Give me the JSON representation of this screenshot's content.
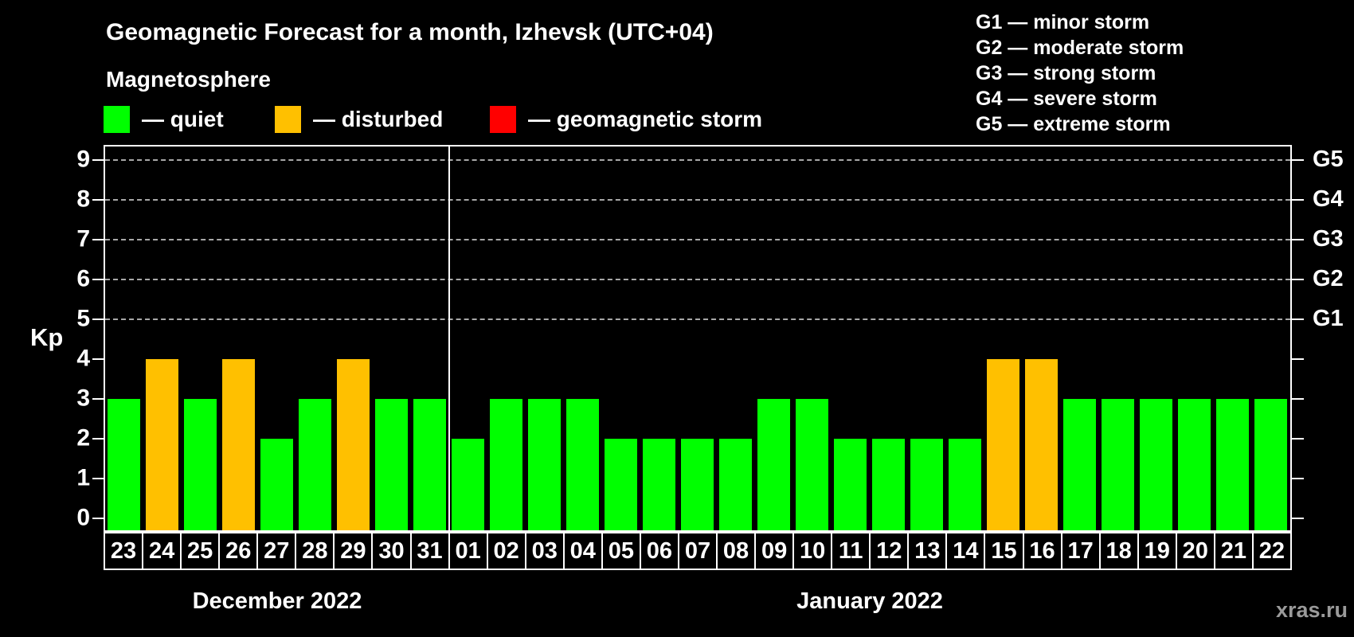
{
  "page": {
    "watermark": "xras.ru"
  },
  "colors": {
    "background": "#000000",
    "quiet": "#00ff00",
    "disturbed": "#ffc000",
    "storm": "#ff0000",
    "grid": "#a8a8a8",
    "axis": "#ffffff",
    "watermark": "#9a9a9a"
  },
  "legend": {
    "items": [
      {
        "key": "quiet",
        "label": "— quiet"
      },
      {
        "key": "disturbed",
        "label": "— disturbed"
      },
      {
        "key": "storm",
        "label": "— geomagnetic storm"
      }
    ],
    "positions_x": [
      130,
      345,
      615
    ]
  },
  "storm_scale_legend": [
    "G1 — minor storm",
    "G2 — moderate storm",
    "G3 — strong storm",
    "G4 — severe storm",
    "G5 — extreme storm"
  ],
  "chart_data": {
    "type": "bar",
    "title": "Geomagnetic Forecast for a month, Izhevsk (UTC+04)",
    "subtitle": "Magnetosphere",
    "ylabel": "Kp",
    "xlabel": "",
    "ylim": [
      0,
      9
    ],
    "yticks": [
      0,
      1,
      2,
      3,
      4,
      5,
      6,
      7,
      8,
      9
    ],
    "gridlines_at": [
      5,
      6,
      7,
      8,
      9
    ],
    "grid": "dashed",
    "right_axis": [
      {
        "value": 5,
        "label": "G1"
      },
      {
        "value": 6,
        "label": "G2"
      },
      {
        "value": 7,
        "label": "G3"
      },
      {
        "value": 8,
        "label": "G4"
      },
      {
        "value": 9,
        "label": "G5"
      }
    ],
    "months": [
      {
        "label": "December 2022",
        "days": [
          {
            "date": "23",
            "kp": 3,
            "status": "quiet"
          },
          {
            "date": "24",
            "kp": 4,
            "status": "disturbed"
          },
          {
            "date": "25",
            "kp": 3,
            "status": "quiet"
          },
          {
            "date": "26",
            "kp": 4,
            "status": "disturbed"
          },
          {
            "date": "27",
            "kp": 2,
            "status": "quiet"
          },
          {
            "date": "28",
            "kp": 3,
            "status": "quiet"
          },
          {
            "date": "29",
            "kp": 4,
            "status": "disturbed"
          },
          {
            "date": "30",
            "kp": 3,
            "status": "quiet"
          },
          {
            "date": "31",
            "kp": 3,
            "status": "quiet"
          }
        ]
      },
      {
        "label": "January 2022",
        "days": [
          {
            "date": "01",
            "kp": 2,
            "status": "quiet"
          },
          {
            "date": "02",
            "kp": 3,
            "status": "quiet"
          },
          {
            "date": "03",
            "kp": 3,
            "status": "quiet"
          },
          {
            "date": "04",
            "kp": 3,
            "status": "quiet"
          },
          {
            "date": "05",
            "kp": 2,
            "status": "quiet"
          },
          {
            "date": "06",
            "kp": 2,
            "status": "quiet"
          },
          {
            "date": "07",
            "kp": 2,
            "status": "quiet"
          },
          {
            "date": "08",
            "kp": 2,
            "status": "quiet"
          },
          {
            "date": "09",
            "kp": 3,
            "status": "quiet"
          },
          {
            "date": "10",
            "kp": 3,
            "status": "quiet"
          },
          {
            "date": "11",
            "kp": 2,
            "status": "quiet"
          },
          {
            "date": "12",
            "kp": 2,
            "status": "quiet"
          },
          {
            "date": "13",
            "kp": 2,
            "status": "quiet"
          },
          {
            "date": "14",
            "kp": 2,
            "status": "quiet"
          },
          {
            "date": "15",
            "kp": 4,
            "status": "disturbed"
          },
          {
            "date": "16",
            "kp": 4,
            "status": "disturbed"
          },
          {
            "date": "17",
            "kp": 3,
            "status": "quiet"
          },
          {
            "date": "18",
            "kp": 3,
            "status": "quiet"
          },
          {
            "date": "19",
            "kp": 3,
            "status": "quiet"
          },
          {
            "date": "20",
            "kp": 3,
            "status": "quiet"
          },
          {
            "date": "21",
            "kp": 3,
            "status": "quiet"
          },
          {
            "date": "22",
            "kp": 3,
            "status": "quiet"
          }
        ]
      }
    ]
  }
}
